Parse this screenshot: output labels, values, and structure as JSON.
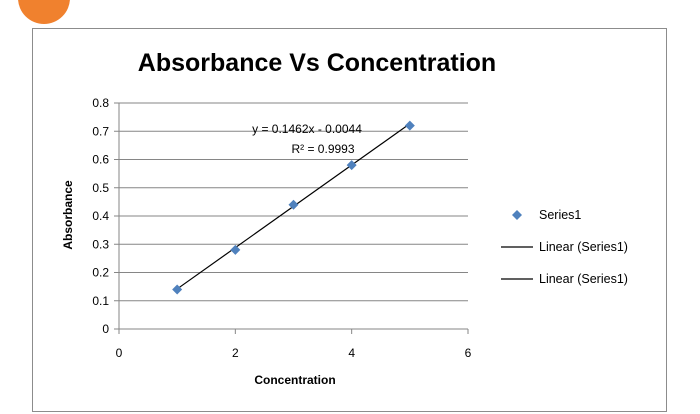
{
  "chart_data": {
    "type": "scatter",
    "title": "Absorbance Vs Concentration",
    "xlabel": "Concentration",
    "ylabel": "Absorbance",
    "xlim": [
      0,
      6
    ],
    "ylim": [
      0,
      0.8
    ],
    "x_ticks": [
      0,
      2,
      4,
      6
    ],
    "y_ticks": [
      0,
      0.1,
      0.2,
      0.3,
      0.4,
      0.5,
      0.6,
      0.7,
      0.8
    ],
    "y_tick_labels": [
      "0",
      "0.1",
      "0.2",
      "0.3",
      "0.4",
      "0.5",
      "0.6",
      "0.7",
      "0.8"
    ],
    "grid": "horizontal",
    "legend_position": "right",
    "series": [
      {
        "name": "Series1",
        "x": [
          1,
          2,
          3,
          4,
          5
        ],
        "y": [
          0.14,
          0.28,
          0.44,
          0.58,
          0.72
        ],
        "color": "#4f81bd",
        "marker": "diamond"
      }
    ],
    "trendline": {
      "type": "linear",
      "slope": 0.1462,
      "intercept": -0.0044,
      "x_range": [
        1,
        5
      ],
      "color": "#000000",
      "equation": "y = 0.1462x - 0.0044",
      "r_squared": "R² = 0.9993"
    },
    "legend": [
      "Series1",
      "Linear (Series1)",
      "Linear (Series1)"
    ]
  }
}
